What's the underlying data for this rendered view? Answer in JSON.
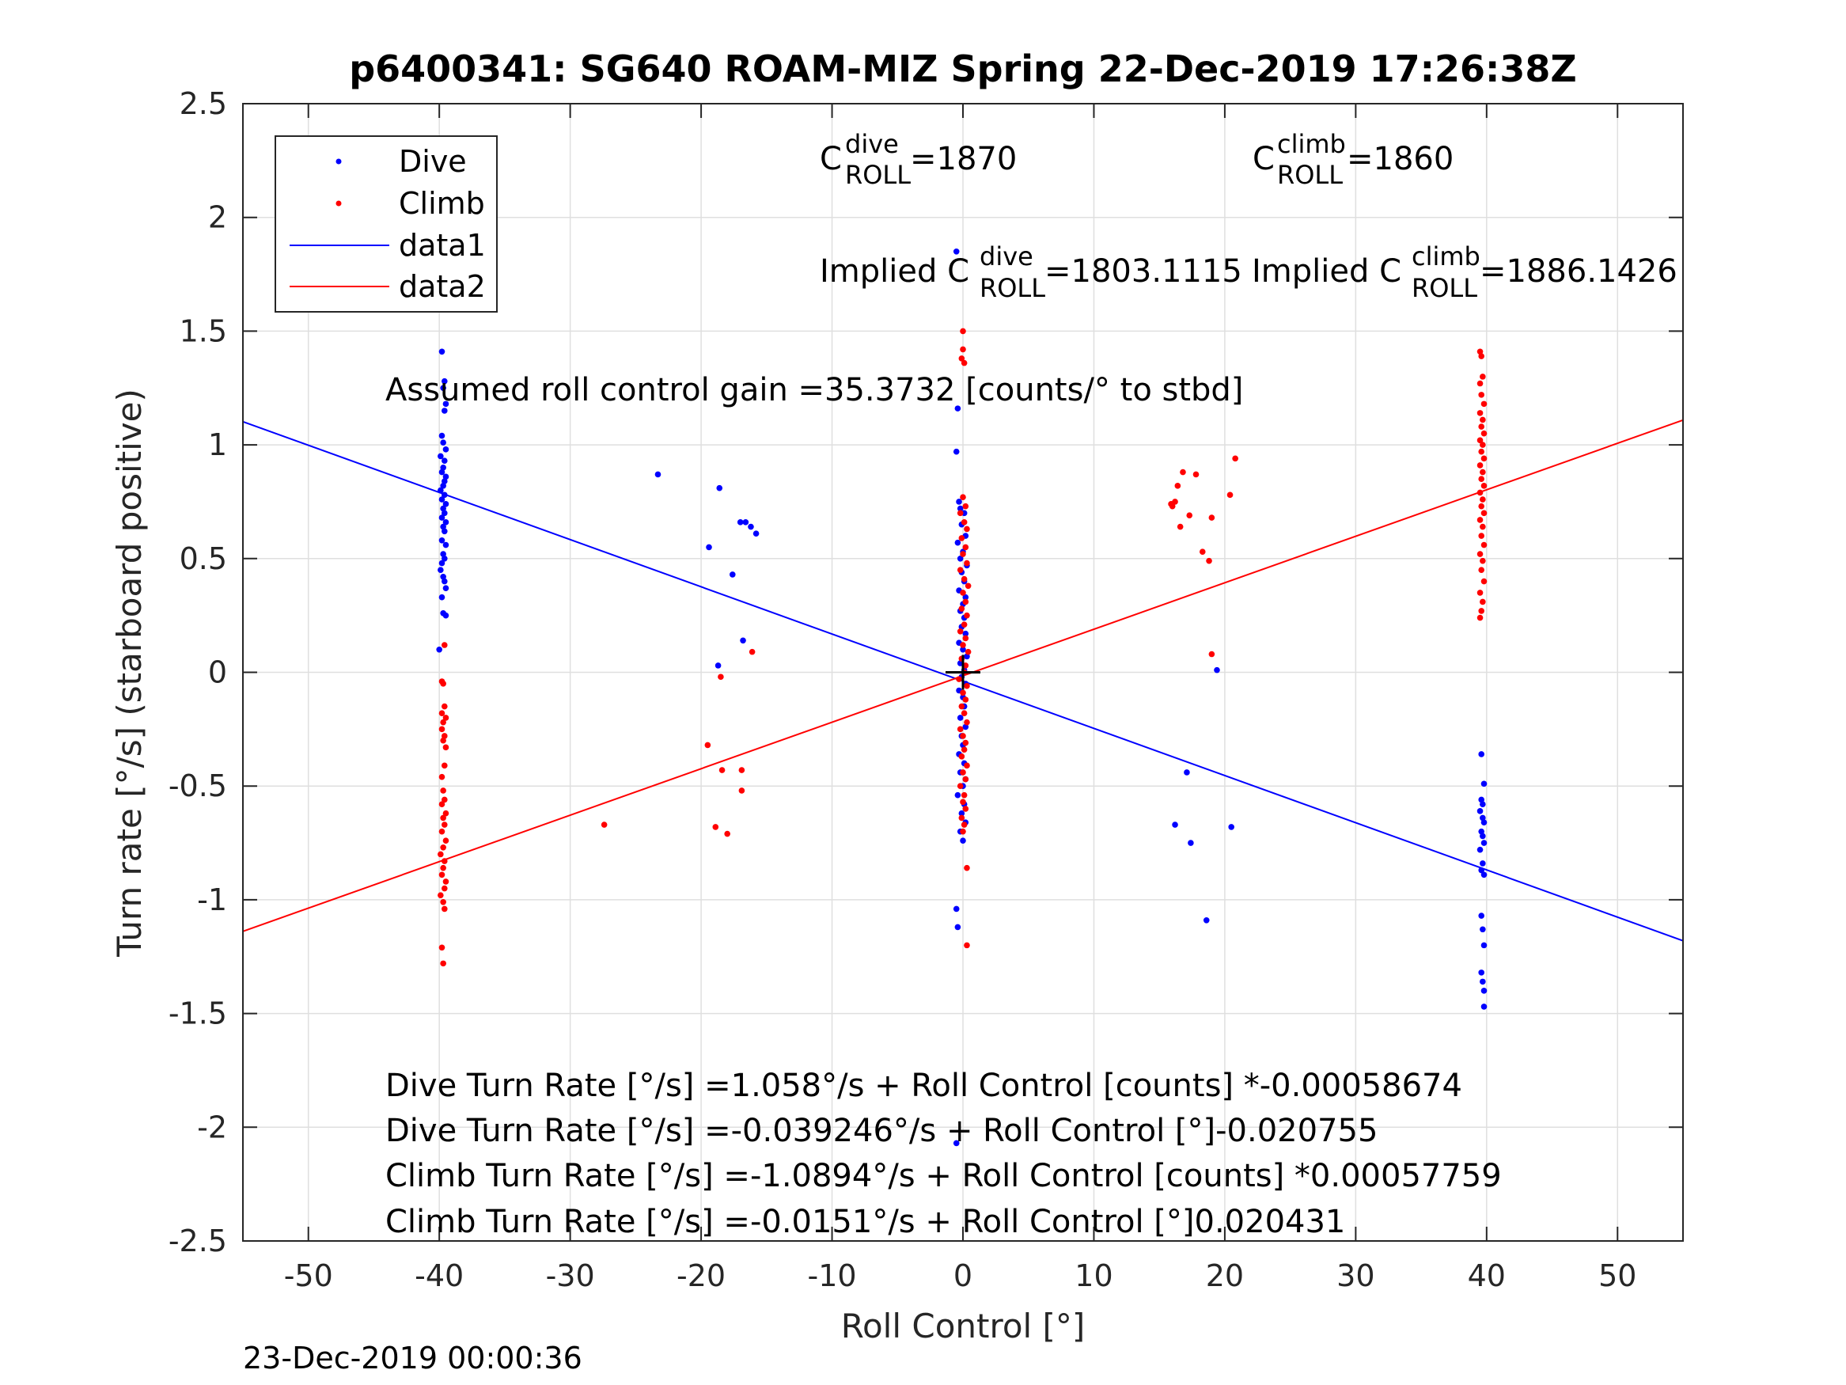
{
  "chart_data": {
    "type": "scatter",
    "title": "p6400341: SG640 ROAM-MIZ Spring 22-Dec-2019 17:26:38Z",
    "xlabel": "Roll Control [°]",
    "ylabel": "Turn rate [°/s] (starboard positive)",
    "xlim": [
      -55,
      55
    ],
    "ylim": [
      -2.5,
      2.5
    ],
    "xticks": [
      "-50",
      "-40",
      "-30",
      "-20",
      "-10",
      "0",
      "10",
      "20",
      "30",
      "40",
      "50"
    ],
    "yticks": [
      "-2.5",
      "-2",
      "-1.5",
      "-1",
      "-0.5",
      "0",
      "0.5",
      "1",
      "1.5",
      "2",
      "2.5"
    ],
    "grid": true,
    "legend_position": "top-left",
    "legend": [
      "Dive",
      "Climb",
      "data1",
      "data2"
    ],
    "colors": {
      "dive": "#0000ff",
      "climb": "#ff0000",
      "marker": "#000000"
    },
    "series": [
      {
        "name": "Dive",
        "kind": "points",
        "points": [
          [
            -39.8,
            1.41
          ],
          [
            -39.6,
            1.28
          ],
          [
            -39.7,
            1.25
          ],
          [
            -39.5,
            1.18
          ],
          [
            -39.6,
            1.15
          ],
          [
            -39.8,
            1.04
          ],
          [
            -39.7,
            1.01
          ],
          [
            -39.5,
            0.98
          ],
          [
            -39.9,
            0.95
          ],
          [
            -39.6,
            0.93
          ],
          [
            -39.7,
            0.9
          ],
          [
            -39.8,
            0.88
          ],
          [
            -39.5,
            0.86
          ],
          [
            -39.6,
            0.84
          ],
          [
            -39.7,
            0.82
          ],
          [
            -39.9,
            0.8
          ],
          [
            -39.6,
            0.78
          ],
          [
            -39.8,
            0.76
          ],
          [
            -39.5,
            0.74
          ],
          [
            -39.7,
            0.72
          ],
          [
            -39.6,
            0.7
          ],
          [
            -39.8,
            0.68
          ],
          [
            -39.5,
            0.66
          ],
          [
            -39.7,
            0.64
          ],
          [
            -39.6,
            0.62
          ],
          [
            -39.8,
            0.58
          ],
          [
            -39.5,
            0.56
          ],
          [
            -39.7,
            0.52
          ],
          [
            -39.6,
            0.5
          ],
          [
            -39.8,
            0.48
          ],
          [
            -39.9,
            0.45
          ],
          [
            -39.7,
            0.42
          ],
          [
            -39.6,
            0.4
          ],
          [
            -39.5,
            0.37
          ],
          [
            -39.8,
            0.33
          ],
          [
            -39.7,
            0.26
          ],
          [
            -39.5,
            0.25
          ],
          [
            -40.0,
            0.1
          ],
          [
            -23.3,
            0.87
          ],
          [
            -18.6,
            0.81
          ],
          [
            -19.4,
            0.55
          ],
          [
            -17.6,
            0.43
          ],
          [
            -17.0,
            0.66
          ],
          [
            -16.6,
            0.66
          ],
          [
            -16.2,
            0.64
          ],
          [
            -15.8,
            0.61
          ],
          [
            -16.8,
            0.14
          ],
          [
            -18.7,
            0.03
          ],
          [
            -0.5,
            1.85
          ],
          [
            -0.4,
            1.16
          ],
          [
            -0.5,
            0.97
          ],
          [
            -0.3,
            0.75
          ],
          [
            -0.2,
            0.72
          ],
          [
            0.1,
            0.7
          ],
          [
            -0.1,
            0.65
          ],
          [
            0.2,
            0.6
          ],
          [
            -0.4,
            0.57
          ],
          [
            0.0,
            0.53
          ],
          [
            -0.2,
            0.5
          ],
          [
            0.3,
            0.47
          ],
          [
            -0.1,
            0.44
          ],
          [
            0.1,
            0.4
          ],
          [
            -0.3,
            0.36
          ],
          [
            0.2,
            0.33
          ],
          [
            0.0,
            0.3
          ],
          [
            -0.2,
            0.27
          ],
          [
            0.1,
            0.24
          ],
          [
            -0.1,
            0.2
          ],
          [
            0.2,
            0.17
          ],
          [
            -0.3,
            0.13
          ],
          [
            0.0,
            0.1
          ],
          [
            0.3,
            0.07
          ],
          [
            -0.2,
            0.04
          ],
          [
            0.1,
            0.01
          ],
          [
            -0.1,
            -0.02
          ],
          [
            0.2,
            -0.05
          ],
          [
            -0.3,
            -0.08
          ],
          [
            0.0,
            -0.11
          ],
          [
            0.1,
            -0.15
          ],
          [
            -0.2,
            -0.2
          ],
          [
            0.2,
            -0.24
          ],
          [
            -0.1,
            -0.28
          ],
          [
            0.0,
            -0.32
          ],
          [
            -0.3,
            -0.36
          ],
          [
            0.1,
            -0.4
          ],
          [
            -0.2,
            -0.44
          ],
          [
            0.2,
            -0.47
          ],
          [
            0.0,
            -0.5
          ],
          [
            -0.4,
            -0.54
          ],
          [
            0.1,
            -0.58
          ],
          [
            -0.1,
            -0.62
          ],
          [
            0.2,
            -0.66
          ],
          [
            -0.2,
            -0.7
          ],
          [
            0.0,
            -0.74
          ],
          [
            -0.5,
            -1.04
          ],
          [
            -0.4,
            -1.12
          ],
          [
            -0.5,
            -2.07
          ],
          [
            19.4,
            0.01
          ],
          [
            17.1,
            -0.44
          ],
          [
            16.2,
            -0.67
          ],
          [
            17.4,
            -0.75
          ],
          [
            20.5,
            -0.68
          ],
          [
            18.6,
            -1.09
          ],
          [
            39.6,
            -0.36
          ],
          [
            39.8,
            -0.49
          ],
          [
            39.6,
            -0.56
          ],
          [
            39.7,
            -0.58
          ],
          [
            39.5,
            -0.61
          ],
          [
            39.7,
            -0.64
          ],
          [
            39.8,
            -0.66
          ],
          [
            39.6,
            -0.7
          ],
          [
            39.7,
            -0.72
          ],
          [
            39.8,
            -0.75
          ],
          [
            39.5,
            -0.78
          ],
          [
            39.7,
            -0.84
          ],
          [
            39.6,
            -0.87
          ],
          [
            39.8,
            -0.89
          ],
          [
            39.6,
            -1.07
          ],
          [
            39.7,
            -1.13
          ],
          [
            39.8,
            -1.2
          ],
          [
            39.6,
            -1.32
          ],
          [
            39.7,
            -1.36
          ],
          [
            39.8,
            -1.4
          ],
          [
            39.8,
            -1.47
          ]
        ]
      },
      {
        "name": "Climb",
        "kind": "points",
        "points": [
          [
            -39.6,
            0.12
          ],
          [
            -39.8,
            -0.04
          ],
          [
            -39.7,
            -0.05
          ],
          [
            -39.6,
            -0.15
          ],
          [
            -39.8,
            -0.18
          ],
          [
            -39.5,
            -0.2
          ],
          [
            -39.7,
            -0.22
          ],
          [
            -39.8,
            -0.25
          ],
          [
            -39.6,
            -0.28
          ],
          [
            -39.7,
            -0.3
          ],
          [
            -39.5,
            -0.33
          ],
          [
            -39.6,
            -0.41
          ],
          [
            -39.8,
            -0.46
          ],
          [
            -39.7,
            -0.52
          ],
          [
            -39.6,
            -0.56
          ],
          [
            -39.8,
            -0.58
          ],
          [
            -39.5,
            -0.62
          ],
          [
            -39.7,
            -0.64
          ],
          [
            -39.6,
            -0.67
          ],
          [
            -39.8,
            -0.7
          ],
          [
            -39.5,
            -0.74
          ],
          [
            -39.7,
            -0.77
          ],
          [
            -39.9,
            -0.8
          ],
          [
            -39.6,
            -0.83
          ],
          [
            -39.7,
            -0.86
          ],
          [
            -39.8,
            -0.89
          ],
          [
            -39.5,
            -0.92
          ],
          [
            -39.6,
            -0.95
          ],
          [
            -39.9,
            -0.98
          ],
          [
            -39.7,
            -1.01
          ],
          [
            -39.6,
            -1.04
          ],
          [
            -39.8,
            -1.21
          ],
          [
            -39.7,
            -1.28
          ],
          [
            -27.4,
            -0.67
          ],
          [
            -19.5,
            -0.32
          ],
          [
            -18.9,
            -0.68
          ],
          [
            -18.4,
            -0.43
          ],
          [
            -18.0,
            -0.71
          ],
          [
            -18.5,
            -0.02
          ],
          [
            -16.9,
            -0.43
          ],
          [
            -16.9,
            -0.52
          ],
          [
            -16.1,
            0.09
          ],
          [
            0.0,
            1.5
          ],
          [
            0.0,
            1.42
          ],
          [
            -0.1,
            1.38
          ],
          [
            0.1,
            1.36
          ],
          [
            0.0,
            0.77
          ],
          [
            0.2,
            0.73
          ],
          [
            -0.2,
            0.7
          ],
          [
            0.1,
            0.66
          ],
          [
            0.3,
            0.63
          ],
          [
            -0.1,
            0.59
          ],
          [
            0.2,
            0.55
          ],
          [
            0.0,
            0.52
          ],
          [
            0.3,
            0.48
          ],
          [
            -0.2,
            0.45
          ],
          [
            0.1,
            0.41
          ],
          [
            0.4,
            0.38
          ],
          [
            0.0,
            0.35
          ],
          [
            0.2,
            0.31
          ],
          [
            -0.1,
            0.28
          ],
          [
            0.3,
            0.25
          ],
          [
            0.1,
            0.21
          ],
          [
            -0.2,
            0.18
          ],
          [
            0.2,
            0.15
          ],
          [
            0.0,
            0.12
          ],
          [
            0.4,
            0.09
          ],
          [
            -0.1,
            0.06
          ],
          [
            0.2,
            0.03
          ],
          [
            0.1,
            0.0
          ],
          [
            -0.3,
            -0.03
          ],
          [
            0.3,
            -0.06
          ],
          [
            0.0,
            -0.09
          ],
          [
            0.2,
            -0.12
          ],
          [
            -0.1,
            -0.15
          ],
          [
            0.1,
            -0.18
          ],
          [
            0.3,
            -0.22
          ],
          [
            -0.2,
            -0.25
          ],
          [
            0.0,
            -0.28
          ],
          [
            0.2,
            -0.31
          ],
          [
            0.1,
            -0.34
          ],
          [
            -0.1,
            -0.37
          ],
          [
            0.3,
            -0.41
          ],
          [
            0.0,
            -0.44
          ],
          [
            0.2,
            -0.47
          ],
          [
            -0.2,
            -0.5
          ],
          [
            0.1,
            -0.54
          ],
          [
            0.0,
            -0.57
          ],
          [
            0.2,
            -0.6
          ],
          [
            -0.1,
            -0.64
          ],
          [
            0.1,
            -0.67
          ],
          [
            0.0,
            -0.7
          ],
          [
            0.3,
            -0.86
          ],
          [
            0.3,
            -1.2
          ],
          [
            16.8,
            0.88
          ],
          [
            16.4,
            0.82
          ],
          [
            15.9,
            0.74
          ],
          [
            16.2,
            0.75
          ],
          [
            16.0,
            0.73
          ],
          [
            17.8,
            0.87
          ],
          [
            17.3,
            0.69
          ],
          [
            19.0,
            0.68
          ],
          [
            16.6,
            0.64
          ],
          [
            18.3,
            0.53
          ],
          [
            18.8,
            0.49
          ],
          [
            20.4,
            0.78
          ],
          [
            20.8,
            0.94
          ],
          [
            19.0,
            0.08
          ],
          [
            39.5,
            1.41
          ],
          [
            39.6,
            1.39
          ],
          [
            39.7,
            1.3
          ],
          [
            39.5,
            1.27
          ],
          [
            39.6,
            1.22
          ],
          [
            39.8,
            1.18
          ],
          [
            39.5,
            1.14
          ],
          [
            39.7,
            1.11
          ],
          [
            39.6,
            1.08
          ],
          [
            39.8,
            1.05
          ],
          [
            39.5,
            1.02
          ],
          [
            39.7,
            1.0
          ],
          [
            39.6,
            0.97
          ],
          [
            39.8,
            0.94
          ],
          [
            39.5,
            0.91
          ],
          [
            39.7,
            0.88
          ],
          [
            39.6,
            0.85
          ],
          [
            39.8,
            0.82
          ],
          [
            39.5,
            0.79
          ],
          [
            39.7,
            0.76
          ],
          [
            39.6,
            0.73
          ],
          [
            39.8,
            0.7
          ],
          [
            39.5,
            0.67
          ],
          [
            39.7,
            0.64
          ],
          [
            39.6,
            0.6
          ],
          [
            39.8,
            0.56
          ],
          [
            39.5,
            0.52
          ],
          [
            39.7,
            0.49
          ],
          [
            39.6,
            0.45
          ],
          [
            39.8,
            0.4
          ],
          [
            39.5,
            0.35
          ],
          [
            39.7,
            0.31
          ],
          [
            39.6,
            0.27
          ],
          [
            39.5,
            0.24
          ]
        ]
      },
      {
        "name": "data1",
        "kind": "line",
        "x": [
          -55,
          55
        ],
        "y": [
          1.102,
          -1.18
        ]
      },
      {
        "name": "data2",
        "kind": "line",
        "x": [
          -55,
          55
        ],
        "y": [
          -1.139,
          1.109
        ]
      }
    ],
    "annotations": {
      "c_dive_main": "C",
      "c_dive_sup": "dive",
      "c_dive_sub": "ROLL",
      "c_dive_value": " =1870",
      "c_climb_main": "C",
      "c_climb_sup": "climb",
      "c_climb_sub": "ROLL",
      "c_climb_value": " =1860",
      "implied_dive_main": "Implied C",
      "implied_dive_sup": "dive",
      "implied_dive_sub": "ROLL",
      "implied_dive_value": " =1803.1115",
      "implied_climb_main": "Implied C",
      "implied_climb_sup": "climb",
      "implied_climb_sub": "ROLL",
      "implied_climb_value": " =1886.1426",
      "gain": "Assumed roll control gain =35.3732 [counts/° to stbd]",
      "eq1": "Dive Turn Rate [°/s] =1.058°/s + Roll Control [counts] *-0.00058674",
      "eq2": "Dive Turn Rate [°/s] =-0.039246°/s + Roll Control [°]-0.020755",
      "eq3": "Climb Turn Rate [°/s] =-1.0894°/s + Roll Control [counts] *0.00057759",
      "eq4": "Climb Turn Rate [°/s] =-0.0151°/s + Roll Control [°]0.020431"
    },
    "timestamp": "23-Dec-2019 00:00:36"
  }
}
